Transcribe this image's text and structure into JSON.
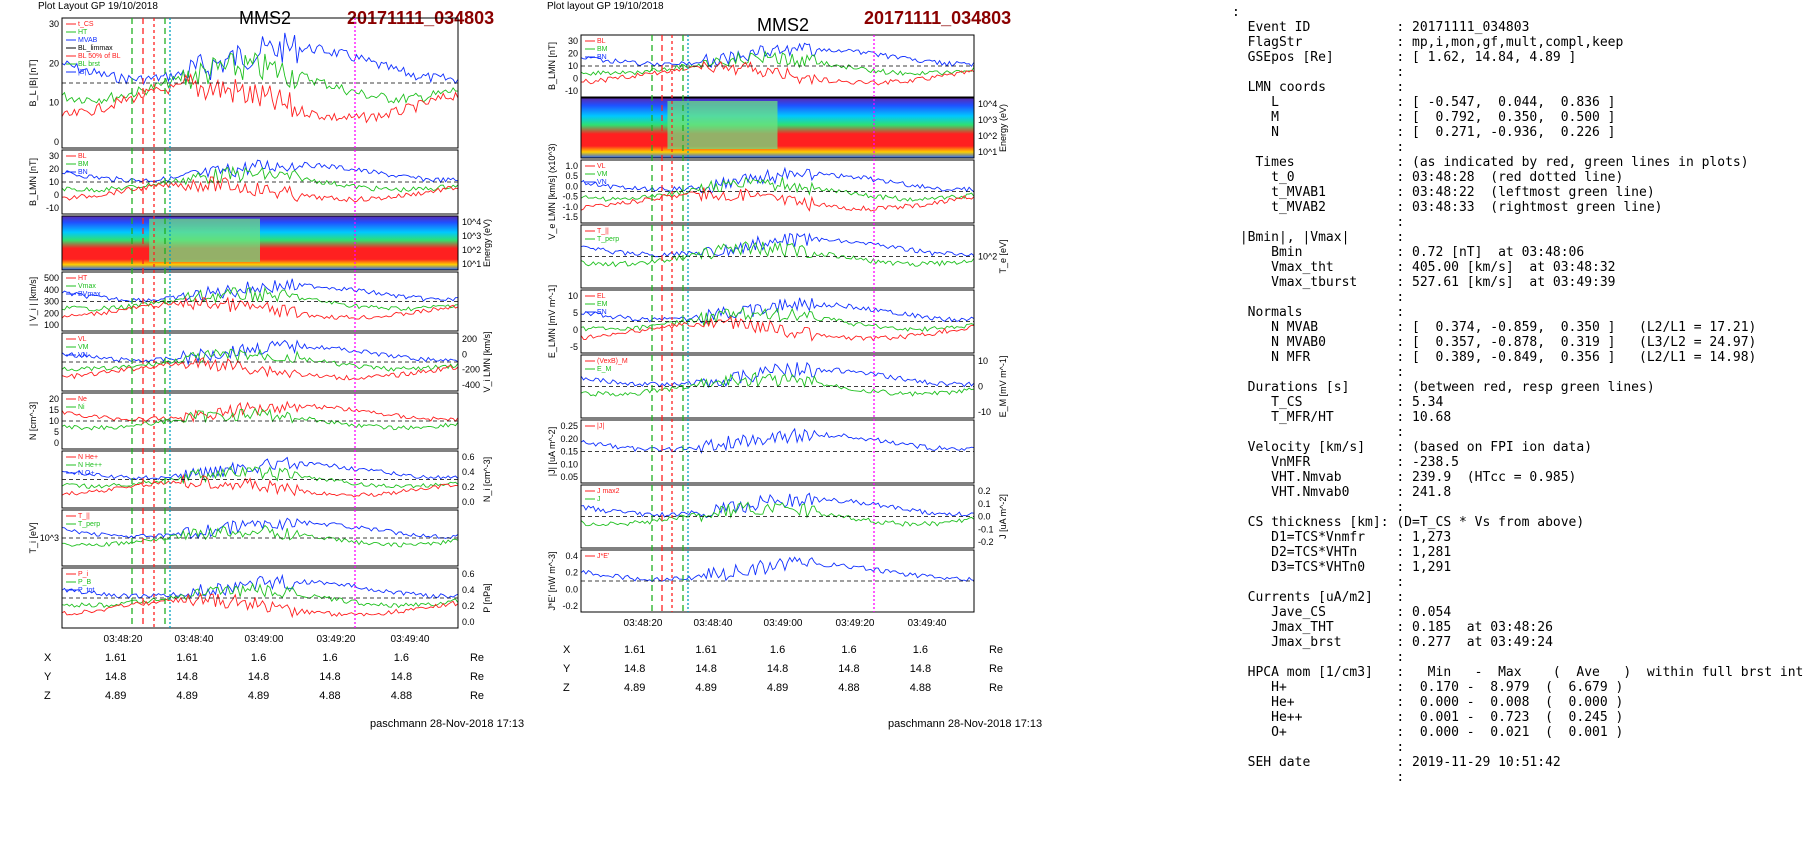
{
  "left_figure": {
    "layout_label": "Plot Layout GP 19/10/2018",
    "spacecraft": "MMS2",
    "event": "20171111_034803",
    "footer": "paschmann 28-Nov-2018 17:13",
    "time_ticks": [
      "03:48:20",
      "03:48:40",
      "03:49:00",
      "03:49:20",
      "03:49:40"
    ],
    "positions": {
      "unit": "Re",
      "rows": [
        {
          "label": "X",
          "values": [
            "1.61",
            "1.61",
            "1.6",
            "1.6",
            "1.6"
          ]
        },
        {
          "label": "Y",
          "values": [
            "14.8",
            "14.8",
            "14.8",
            "14.8",
            "14.8"
          ]
        },
        {
          "label": "Z",
          "values": [
            "4.89",
            "4.89",
            "4.89",
            "4.88",
            "4.88"
          ]
        }
      ]
    }
  },
  "right_figure": {
    "layout_label": "Plot layout GP 19/10/2018",
    "spacecraft": "MMS2",
    "event": "20171111_034803",
    "footer": "paschmann 28-Nov-2018 17:13",
    "time_ticks": [
      "03:48:20",
      "03:48:40",
      "03:49:00",
      "03:49:20",
      "03:49:40"
    ],
    "positions": {
      "unit": "Re",
      "rows": [
        {
          "label": "X",
          "values": [
            "1.61",
            "1.61",
            "1.6",
            "1.6",
            "1.6"
          ]
        },
        {
          "label": "Y",
          "values": [
            "14.8",
            "14.8",
            "14.8",
            "14.8",
            "14.8"
          ]
        },
        {
          "label": "Z",
          "values": [
            "4.89",
            "4.89",
            "4.89",
            "4.88",
            "4.88"
          ]
        }
      ]
    }
  },
  "summary_lines": [
    ":",
    "  Event ID           : 20171111_034803",
    "  FlagStr            : mp,i,mon,gf,mult,compl,keep",
    "  GSEpos [Re]        : [ 1.62, 14.84, 4.89 ]",
    "                     :",
    "  LMN coords         :",
    "     L               : [ -0.547,  0.044,  0.836 ]",
    "     M               : [  0.792,  0.350,  0.500 ]",
    "     N               : [  0.271, -0.936,  0.226 ]",
    "                     :",
    "   Times             : (as indicated by red, green lines in plots)",
    "     t_0             : 03:48:28  (red dotted line)",
    "     t_MVAB1         : 03:48:22  (leftmost green line)",
    "     t_MVAB2         : 03:48:33  (rightmost green line)",
    "                     :",
    " |Bmin|, |Vmax|      :",
    "     Bmin            : 0.72 [nT]  at 03:48:06",
    "     Vmax_tht        : 405.00 [km/s]  at 03:48:32",
    "     Vmax_tburst     : 527.61 [km/s]  at 03:49:39",
    "                     :",
    "  Normals            :",
    "     N MVAB          : [  0.374, -0.859,  0.350 ]   (L2/L1 = 17.21)",
    "     N MVAB0         : [  0.357, -0.878,  0.319 ]   (L3/L2 = 24.97)",
    "     N MFR           : [  0.389, -0.849,  0.356 ]   (L2/L1 = 14.98)",
    "                     :",
    "  Durations [s]      : (between red, resp green lines)",
    "     T_CS            : 5.34",
    "     T_MFR/HT        : 10.68",
    "                     :",
    "  Velocity [km/s]    : (based on FPI ion data)",
    "     VnMFR           : -238.5",
    "     VHT.Nmvab       : 239.9  (HTcc = 0.985)",
    "     VHT.Nmvab0      : 241.8",
    "                     :",
    "  CS thickness [km]: (D=T_CS * Vs from above)",
    "     D1=TCS*Vnmfr    : 1,273",
    "     D2=TCS*VHTn     : 1,281",
    "     D3=TCS*VHTn0    : 1,291",
    "                     :",
    "  Currents [uA/m2]   :",
    "     Jave_CS         : 0.054",
    "     Jmax_THT        : 0.185  at 03:48:26",
    "     Jmax_brst       : 0.277  at 03:49:24",
    "                     :",
    "  HPCA mom [1/cm3]   :   Min   -  Max    (  Ave   )  within full brst int",
    "     H+              :  0.170 -  8.979  (  6.679 )",
    "     He+             :  0.000 -  0.008  (  0.000 )",
    "     He++            :  0.001 -  0.723  (  0.245 )",
    "     O+              :  0.000 -  0.021  (  0.001 )",
    "                     :",
    "  SEH date           : 2019-11-29 10:51:42",
    "                     :"
  ],
  "chart_data": [
    {
      "type": "line",
      "title": "MMS2 20171111_034803",
      "time_ticks": [
        "03:48:20",
        "03:48:40",
        "03:49:00",
        "03:49:20",
        "03:49:40"
      ],
      "marker_times": {
        "t0": "03:48:28",
        "t_mvab1": "03:48:22",
        "t_mvab2": "03:48:33"
      },
      "panels": [
        {
          "id": "B_total",
          "ylabel": "B_L |B| [nT]",
          "yticks": [
            "30",
            "20",
            "10",
            "0"
          ],
          "legend": [
            "t_CS",
            "HT",
            "MVAB",
            "BL_limmax",
            "BL 50% of BL",
            "BL brst",
            "|B|"
          ]
        },
        {
          "id": "B_LMN",
          "ylabel": "B_LMN [nT]",
          "yticks": [
            "30",
            "20",
            "10",
            "0",
            "-10"
          ],
          "legend": [
            "BL",
            "BM",
            "BN"
          ]
        },
        {
          "id": "ion_spectrogram",
          "ylabel": "Energy (eV)",
          "yticks": [
            "10^4",
            "10^3",
            "10^2",
            "10^1"
          ]
        },
        {
          "id": "Vi_mag",
          "ylabel": "| V_i | [km/s]",
          "yticks": [
            "500",
            "400",
            "300",
            "200",
            "100"
          ],
          "legend": [
            "HT",
            "Vmax",
            "BVmax"
          ]
        },
        {
          "id": "Vi_LMN",
          "ylabel": "V_i LMN [km/s]",
          "yticks": [
            "200",
            "0",
            "-200",
            "-400"
          ],
          "legend": [
            "VL",
            "VM",
            "VN"
          ]
        },
        {
          "id": "density",
          "ylabel": "N [cm^-3]",
          "yticks": [
            "20",
            "15",
            "10",
            "5",
            "0"
          ],
          "legend": [
            "Ne",
            "Ni"
          ]
        },
        {
          "id": "hpca_minor",
          "ylabel": "N_i [cm^-3]",
          "yticks": [
            "0.6",
            "0.4",
            "0.2",
            "0.0"
          ],
          "legend": [
            "N He+",
            "N He++",
            "N O+"
          ]
        },
        {
          "id": "Ti",
          "ylabel": "T_i [eV]",
          "yticks": [
            "10^3"
          ],
          "legend": [
            "T_||",
            "T_perp"
          ]
        },
        {
          "id": "pressure",
          "ylabel": "P [nPa]",
          "yticks": [
            "0.6",
            "0.4",
            "0.2",
            "0.0"
          ],
          "legend": [
            "P_i",
            "P_B",
            "P_tot"
          ]
        }
      ]
    },
    {
      "type": "line",
      "title": "MMS2 20171111_034803",
      "time_ticks": [
        "03:48:20",
        "03:48:40",
        "03:49:00",
        "03:49:20",
        "03:49:40"
      ],
      "marker_times": {
        "t0": "03:48:28",
        "t_mvab1": "03:48:22",
        "t_mvab2": "03:48:33"
      },
      "panels": [
        {
          "id": "B_LMN",
          "ylabel": "B_LMN [nT]",
          "yticks": [
            "30",
            "20",
            "10",
            "0",
            "-10"
          ],
          "legend": [
            "BL",
            "BM",
            "BN"
          ]
        },
        {
          "id": "electron_spectrogram",
          "ylabel": "Energy (eV)",
          "yticks": [
            "10^4",
            "10^3",
            "10^2",
            "10^1"
          ]
        },
        {
          "id": "Ve_LMN",
          "ylabel": "V_e LMN [km/s] (x10^3)",
          "yticks": [
            "1.0",
            "0.5",
            "0.0",
            "-0.5",
            "-1.0",
            "-1.5"
          ],
          "legend": [
            "VL",
            "VM",
            "VN"
          ]
        },
        {
          "id": "Te",
          "ylabel": "T_e [eV]",
          "yticks": [
            "10^2"
          ],
          "legend": [
            "T_||",
            "T_perp"
          ]
        },
        {
          "id": "E_LMN",
          "ylabel": "E_LMN [mV m^-1]",
          "yticks": [
            "10",
            "5",
            "0",
            "-5"
          ],
          "legend": [
            "EL",
            "EM",
            "EN"
          ]
        },
        {
          "id": "E_M",
          "ylabel": "E_M [mV m^-1]",
          "yticks": [
            "10",
            "0",
            "-10"
          ],
          "legend": [
            "(VexB)_M",
            "E_M"
          ]
        },
        {
          "id": "J_mag",
          "ylabel": "|J| [uA m^-2]",
          "yticks": [
            "0.25",
            "0.20",
            "0.15",
            "0.10",
            "0.05"
          ],
          "legend": [
            "|J|"
          ]
        },
        {
          "id": "J_LMN",
          "ylabel": "J [uA m^-2]",
          "yticks": [
            "0.2",
            "0.1",
            "0.0",
            "-0.1",
            "-0.2"
          ],
          "legend": [
            "J max2",
            "J"
          ]
        },
        {
          "id": "JdotE",
          "ylabel": "J*E' [nW m^-3]",
          "yticks": [
            "0.4",
            "0.2",
            "0.0",
            "-0.2"
          ],
          "legend": [
            "J*E'"
          ]
        }
      ]
    }
  ]
}
